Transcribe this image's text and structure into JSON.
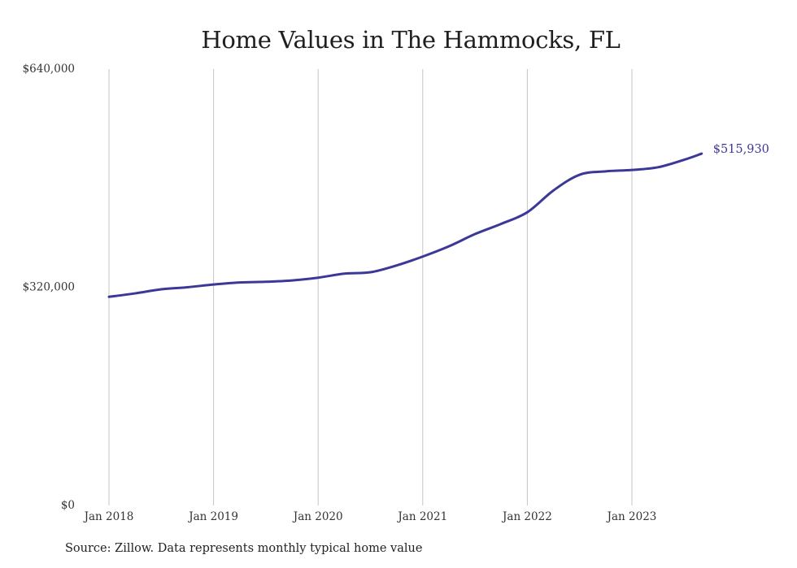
{
  "chart_data": {
    "type": "line",
    "title": "Home Values in The Hammocks, FL",
    "xlabel": "",
    "ylabel": "",
    "x_tick_labels": [
      "Jan 2018",
      "Jan 2019",
      "Jan 2020",
      "Jan 2021",
      "Jan 2022",
      "Jan 2023"
    ],
    "y_tick_labels": [
      "$0",
      "$320,000",
      "$640,000"
    ],
    "y_tick_values": [
      0,
      320000,
      640000
    ],
    "ylim": [
      0,
      640000
    ],
    "xlim": [
      "2018-01",
      "2023-09"
    ],
    "grid": "vertical",
    "series": [
      {
        "color": "#3b3897",
        "points": [
          {
            "x": "2018-01",
            "y": 306000
          },
          {
            "x": "2018-04",
            "y": 311000
          },
          {
            "x": "2018-07",
            "y": 317000
          },
          {
            "x": "2018-10",
            "y": 320000
          },
          {
            "x": "2019-01",
            "y": 324000
          },
          {
            "x": "2019-04",
            "y": 327000
          },
          {
            "x": "2019-07",
            "y": 328000
          },
          {
            "x": "2019-10",
            "y": 330000
          },
          {
            "x": "2020-01",
            "y": 334000
          },
          {
            "x": "2020-04",
            "y": 340000
          },
          {
            "x": "2020-07",
            "y": 342000
          },
          {
            "x": "2020-10",
            "y": 352000
          },
          {
            "x": "2021-01",
            "y": 365000
          },
          {
            "x": "2021-04",
            "y": 380000
          },
          {
            "x": "2021-07",
            "y": 398000
          },
          {
            "x": "2021-10",
            "y": 413000
          },
          {
            "x": "2022-01",
            "y": 430000
          },
          {
            "x": "2022-04",
            "y": 462000
          },
          {
            "x": "2022-07",
            "y": 485000
          },
          {
            "x": "2022-10",
            "y": 490000
          },
          {
            "x": "2023-01",
            "y": 492000
          },
          {
            "x": "2023-04",
            "y": 496000
          },
          {
            "x": "2023-07",
            "y": 507000
          },
          {
            "x": "2023-09",
            "y": 515930
          }
        ]
      }
    ],
    "end_label": "$515,930"
  },
  "source": "Source: Zillow. Data represents monthly typical home value",
  "colors": {
    "line": "#3b3897",
    "grid": "#c4c4c4",
    "end_label": "#3b3897"
  }
}
